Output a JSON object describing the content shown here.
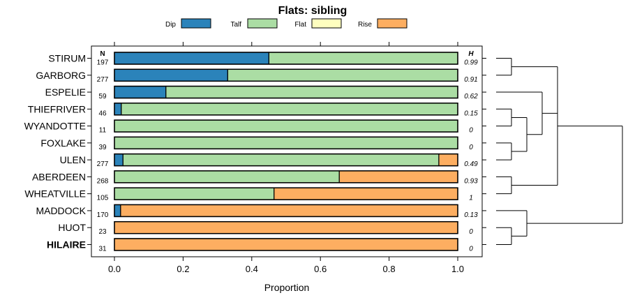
{
  "chart_data": {
    "type": "bar",
    "subtype": "stacked-horizontal-proportion",
    "title": "Flats: sibling",
    "xlabel": "Proportion",
    "xlim": [
      0,
      1
    ],
    "xticks": [
      "0.0",
      "0.2",
      "0.4",
      "0.6",
      "0.8",
      "1.0"
    ],
    "left_column_header": "N",
    "right_column_header": "H",
    "legend": [
      {
        "name": "Dip",
        "color": "#2b83ba"
      },
      {
        "name": "Talf",
        "color": "#abdda4"
      },
      {
        "name": "Flat",
        "color": "#ffffbf"
      },
      {
        "name": "Rise",
        "color": "#fdae61"
      }
    ],
    "categories": [
      "STIRUM",
      "GARBORG",
      "ESPELIE",
      "THIEFRIVER",
      "WYANDOTTE",
      "FOXLAKE",
      "ULEN",
      "ABERDEEN",
      "WHEATVILLE",
      "MADDOCK",
      "HUOT",
      "HILAIRE"
    ],
    "bold_category": "HILAIRE",
    "n": [
      "197",
      "277",
      "59",
      "46",
      "11",
      "39",
      "277",
      "268",
      "105",
      "170",
      "23",
      "31"
    ],
    "h": [
      "0.99",
      "0.91",
      "0.62",
      "0.15",
      "0",
      "0",
      "0.49",
      "0.93",
      "1",
      "0.13",
      "0",
      "0"
    ],
    "series": [
      {
        "name": "Dip",
        "values": [
          0.45,
          0.33,
          0.15,
          0.02,
          0,
          0,
          0.025,
          0,
          0,
          0.018,
          0,
          0
        ]
      },
      {
        "name": "Talf",
        "values": [
          0.55,
          0.67,
          0.85,
          0.98,
          1,
          1,
          0.92,
          0.655,
          0.465,
          0,
          0,
          0
        ]
      },
      {
        "name": "Flat",
        "values": [
          0,
          0,
          0,
          0,
          0,
          0,
          0,
          0,
          0,
          0,
          0,
          0
        ]
      },
      {
        "name": "Rise",
        "values": [
          0,
          0,
          0,
          0,
          0,
          0,
          0.055,
          0.345,
          0.535,
          0.982,
          1,
          1
        ]
      }
    ],
    "dendrogram": {
      "type": "tree",
      "children": [
        {
          "children": [
            {
              "children": [
                {
                  "leaf": 0
                },
                {
                  "leaf": 1
                }
              ]
            },
            {
              "children": [
                {
                  "leaf": 2
                },
                {
                  "children": [
                    {
                      "children": [
                        {
                          "leaf": 3
                        },
                        {
                          "leaf": 4
                        }
                      ]
                    },
                    {
                      "children": [
                        {
                          "leaf": 5
                        },
                        {
                          "leaf": 6
                        }
                      ]
                    }
                  ]
                }
              ]
            },
            {
              "children": [
                {
                  "leaf": 7
                },
                {
                  "leaf": 8
                }
              ]
            }
          ]
        },
        {
          "children": [
            {
              "leaf": 9
            },
            {
              "children": [
                {
                  "leaf": 10
                },
                {
                  "leaf": 11
                }
              ]
            }
          ]
        }
      ]
    }
  }
}
